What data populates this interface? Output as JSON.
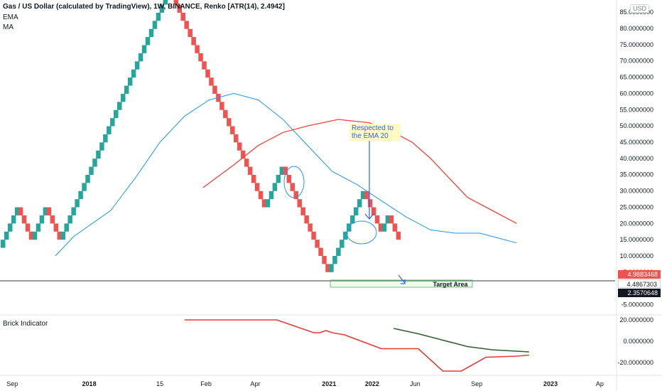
{
  "header": {
    "title": "Gas / US Dollar (calculated by TradingView), 1W, BINANCE, Renko [ATR(14), 2.4942]",
    "ema_label": "EMA",
    "ma_label": "MA"
  },
  "currency_badge": "USD",
  "annotations": {
    "note": "Respected to the EMA 20",
    "target": "Target Area"
  },
  "price_tags": {
    "last": "4.9883468",
    "line": "4.4867303",
    "crosshair": "2.3570648"
  },
  "colors": {
    "up": "#26a69a",
    "down": "#ef5350",
    "ema": "#2196f3",
    "ma": "#f44336",
    "indicator_1": "#e53935",
    "indicator_2": "#2e5e2e"
  },
  "chart_data": [
    {
      "type": "renko",
      "title": "Gas / US Dollar (calculated by TradingView), 1W, BINANCE, Renko [ATR(14), 2.4942]",
      "brick_size": 2.4942,
      "y_axis_labels": [
        "85.0000000",
        "80.0000000",
        "75.0000000",
        "70.0000000",
        "65.0000000",
        "60.0000000",
        "55.0000000",
        "50.0000000",
        "45.0000000",
        "40.0000000",
        "35.0000000",
        "30.0000000",
        "25.0000000",
        "20.0000000",
        "15.0000000",
        "10.0000000",
        "5.0000000",
        "-5.0000000"
      ],
      "ylim": [
        -7.5,
        87
      ],
      "x_axis_labels": [
        "Sep",
        "2018",
        "15",
        "Feb",
        "Apr",
        "2021",
        "2022",
        "Jun",
        "Sep",
        "2023",
        "Ap"
      ],
      "x_axis_label_x": [
        0.02,
        0.145,
        0.26,
        0.335,
        0.415,
        0.535,
        0.605,
        0.675,
        0.775,
        0.895,
        0.975
      ],
      "renko_directions": [
        1,
        1,
        1,
        1,
        1,
        -1,
        -1,
        -1,
        -1,
        1,
        1,
        1,
        1,
        -1,
        -1,
        -1,
        -1,
        1,
        1,
        1,
        1,
        1,
        1,
        1,
        1,
        1,
        1,
        1,
        1,
        1,
        1,
        1,
        1,
        1,
        1,
        1,
        1,
        1,
        1,
        1,
        1,
        1,
        1,
        1,
        1,
        1,
        1,
        1,
        -1,
        -1,
        -1,
        -1,
        -1,
        -1,
        -1,
        -1,
        -1,
        -1,
        -1,
        -1,
        -1,
        -1,
        -1,
        -1,
        -1,
        -1,
        -1,
        -1,
        -1,
        -1,
        -1,
        -1,
        -1,
        -1,
        -1,
        1,
        1,
        1,
        1,
        1,
        -1,
        -1,
        -1,
        -1,
        -1,
        -1,
        -1,
        -1,
        -1,
        -1,
        -1,
        -1,
        -1,
        1,
        1,
        1,
        1,
        1,
        1,
        1,
        1,
        1,
        1,
        -1,
        -1,
        -1,
        -1,
        -1,
        1,
        1,
        -1,
        -1,
        -1
      ],
      "renko_start": 12.5,
      "ema_20": [
        [
          0.09,
          10
        ],
        [
          0.12,
          16
        ],
        [
          0.18,
          24
        ],
        [
          0.22,
          34
        ],
        [
          0.26,
          45
        ],
        [
          0.3,
          53
        ],
        [
          0.34,
          58
        ],
        [
          0.38,
          60
        ],
        [
          0.42,
          58
        ],
        [
          0.46,
          52
        ],
        [
          0.5,
          44
        ],
        [
          0.54,
          36
        ],
        [
          0.58,
          32
        ],
        [
          0.62,
          27
        ],
        [
          0.66,
          22
        ],
        [
          0.7,
          18
        ],
        [
          0.74,
          17
        ],
        [
          0.78,
          17
        ],
        [
          0.82,
          15
        ],
        [
          0.84,
          14
        ]
      ],
      "ma": [
        [
          0.33,
          31
        ],
        [
          0.38,
          38
        ],
        [
          0.42,
          44
        ],
        [
          0.46,
          48
        ],
        [
          0.5,
          50
        ],
        [
          0.55,
          52
        ],
        [
          0.6,
          51
        ],
        [
          0.64,
          48
        ],
        [
          0.67,
          45
        ],
        [
          0.7,
          40
        ],
        [
          0.73,
          34
        ],
        [
          0.76,
          28
        ],
        [
          0.8,
          24
        ],
        [
          0.84,
          20
        ]
      ],
      "target_area": {
        "x": [
          0.745,
          1.06
        ],
        "y": [
          1.5,
          3.5
        ]
      },
      "horizontal_line": 2.3570648,
      "arrow_label": "Respected to the EMA 20"
    },
    {
      "type": "line",
      "title": "Brick Indicator",
      "y_axis_labels": [
        "20.0000000",
        "0.0000000",
        "-20.0000000"
      ],
      "ylim": [
        -30,
        24
      ],
      "series": [
        {
          "values": [
            [
              0.3,
              20
            ],
            [
              0.45,
              20
            ],
            [
              0.51,
              8
            ],
            [
              0.52,
              8
            ],
            [
              0.53,
              10
            ],
            [
              0.54,
              8
            ],
            [
              0.56,
              6
            ],
            [
              0.62,
              -7
            ],
            [
              0.68,
              -7
            ],
            [
              0.72,
              -28
            ],
            [
              0.75,
              -28
            ],
            [
              0.79,
              -15
            ],
            [
              0.84,
              -14
            ],
            [
              0.86,
              -13
            ]
          ]
        },
        {
          "values": [
            [
              0.64,
              12
            ],
            [
              0.68,
              7
            ],
            [
              0.72,
              1
            ],
            [
              0.76,
              -5
            ],
            [
              0.8,
              -8
            ],
            [
              0.86,
              -10
            ]
          ]
        }
      ]
    }
  ]
}
